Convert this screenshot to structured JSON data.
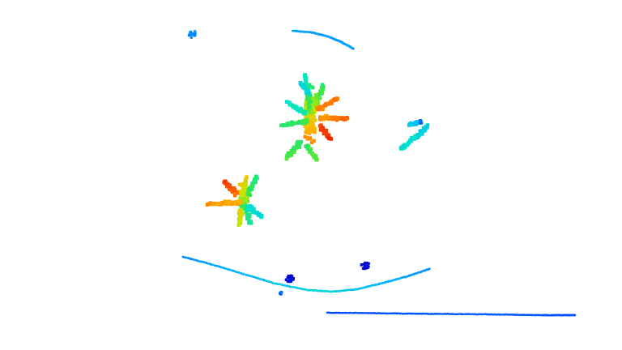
{
  "scene": {
    "background": "#ffffff",
    "colormap": "jet",
    "colormap_stops": [
      "#0000c8",
      "#0050ff",
      "#00b4ff",
      "#00e6c8",
      "#32e650",
      "#c8e600",
      "#ffb400",
      "#ff6400",
      "#e61e00"
    ],
    "objects": [
      "upper-plant-cluster",
      "lower-plant-cluster",
      "right-leaf-cluster",
      "top-arc-scan-line",
      "bottom-arc-scan-line",
      "bottom-straight-scan-line",
      "small-debris-points"
    ]
  }
}
